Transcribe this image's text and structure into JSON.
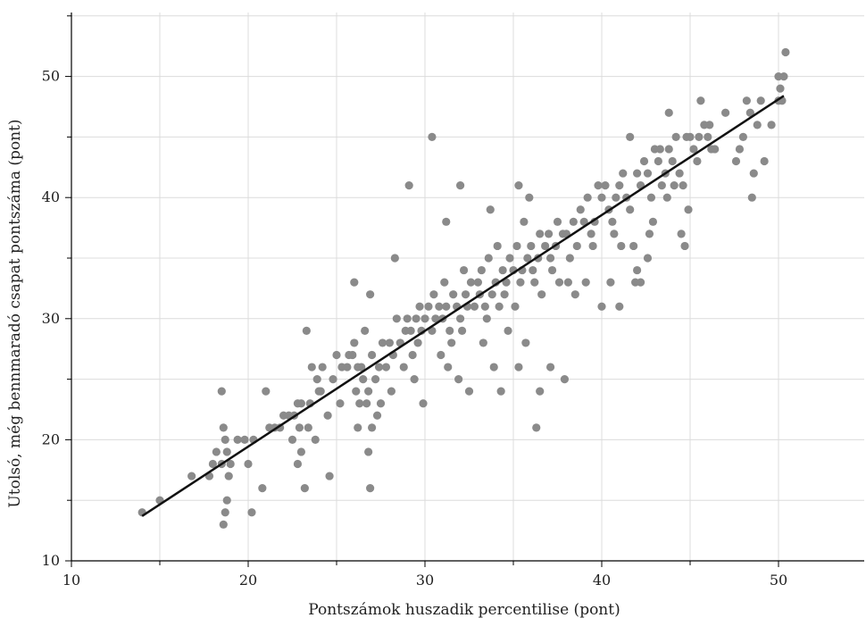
{
  "chart_data": {
    "type": "scatter",
    "title": "",
    "xlabel": "Pontszámok huszadik percentilise (pont)",
    "ylabel": "Utolsó, még bennmaradó csapat pontszáma (pont)",
    "xlim": [
      10,
      55
    ],
    "ylim": [
      10,
      55
    ],
    "x_ticks": [
      10,
      20,
      30,
      40,
      50
    ],
    "y_ticks": [
      10,
      20,
      30,
      40,
      50
    ],
    "x_tick_labels": [
      "10",
      "20",
      "30",
      "40",
      "50"
    ],
    "y_tick_labels": [
      "10",
      "20",
      "30",
      "40",
      "50"
    ],
    "grid": true,
    "colors": {
      "points": "#8a8a8a",
      "trendline": "#111111",
      "grid": "#dcdcdc"
    },
    "trendline": {
      "x": [
        14,
        50.3
      ],
      "y": [
        13.7,
        48.4
      ]
    },
    "points": [
      [
        14,
        14
      ],
      [
        15,
        15
      ],
      [
        16.8,
        17
      ],
      [
        17.8,
        17
      ],
      [
        18,
        18
      ],
      [
        18.2,
        19
      ],
      [
        18.5,
        18
      ],
      [
        18.5,
        24
      ],
      [
        18.6,
        21
      ],
      [
        18.7,
        20
      ],
      [
        18.8,
        19
      ],
      [
        18.9,
        17
      ],
      [
        18.7,
        14
      ],
      [
        18.8,
        15
      ],
      [
        18.6,
        13
      ],
      [
        19,
        18
      ],
      [
        19.4,
        20
      ],
      [
        19.8,
        20
      ],
      [
        20.3,
        20
      ],
      [
        20,
        18
      ],
      [
        20.8,
        16
      ],
      [
        20.2,
        14
      ],
      [
        21,
        24
      ],
      [
        21.2,
        21
      ],
      [
        21.5,
        21
      ],
      [
        21.8,
        21
      ],
      [
        22,
        22
      ],
      [
        22.3,
        22
      ],
      [
        22.6,
        22
      ],
      [
        22.8,
        23
      ],
      [
        23,
        23
      ],
      [
        22.5,
        20
      ],
      [
        22.8,
        18
      ],
      [
        23,
        19
      ],
      [
        23.2,
        16
      ],
      [
        23.4,
        21
      ],
      [
        23.5,
        23
      ],
      [
        24,
        24
      ],
      [
        23.8,
        20
      ],
      [
        23.3,
        29
      ],
      [
        23.6,
        26
      ],
      [
        24.2,
        26
      ],
      [
        24.5,
        22
      ],
      [
        24.8,
        25
      ],
      [
        25,
        27
      ],
      [
        25.3,
        26
      ],
      [
        25.6,
        26
      ],
      [
        25.9,
        27
      ],
      [
        26,
        28
      ],
      [
        26.2,
        26
      ],
      [
        26.5,
        25
      ],
      [
        26.8,
        24
      ],
      [
        27,
        27
      ],
      [
        26.6,
        29
      ],
      [
        26.9,
        32
      ],
      [
        26,
        33
      ],
      [
        27.2,
        25
      ],
      [
        27.4,
        26
      ],
      [
        27,
        21
      ],
      [
        26.8,
        19
      ],
      [
        26.9,
        16
      ],
      [
        27.6,
        28
      ],
      [
        28,
        28
      ],
      [
        28.2,
        27
      ],
      [
        28.3,
        35
      ],
      [
        28.6,
        28
      ],
      [
        28.9,
        29
      ],
      [
        29,
        30
      ],
      [
        29.2,
        29
      ],
      [
        29.1,
        41
      ],
      [
        29.4,
        25
      ],
      [
        29.6,
        28
      ],
      [
        29.8,
        29
      ],
      [
        24.6,
        17
      ],
      [
        22.9,
        21
      ],
      [
        23.9,
        25
      ],
      [
        24.1,
        24
      ],
      [
        25.2,
        23
      ],
      [
        25.7,
        27
      ],
      [
        26.1,
        24
      ],
      [
        26.3,
        23
      ],
      [
        26.4,
        26
      ],
      [
        26.7,
        23
      ],
      [
        27.3,
        22
      ],
      [
        27.8,
        26
      ],
      [
        28.4,
        30
      ],
      [
        28.8,
        26
      ],
      [
        29.3,
        27
      ],
      [
        29.5,
        30
      ],
      [
        29.7,
        31
      ],
      [
        29.9,
        23
      ],
      [
        28.1,
        24
      ],
      [
        27.5,
        23
      ],
      [
        26.2,
        21
      ],
      [
        30,
        30
      ],
      [
        30.2,
        31
      ],
      [
        30.4,
        29
      ],
      [
        30.5,
        32
      ],
      [
        30.6,
        30
      ],
      [
        30.8,
        31
      ],
      [
        31,
        30
      ],
      [
        31.1,
        33
      ],
      [
        31.2,
        31
      ],
      [
        31.4,
        29
      ],
      [
        31.5,
        28
      ],
      [
        31.6,
        32
      ],
      [
        31.8,
        31
      ],
      [
        32,
        30
      ],
      [
        32.1,
        29
      ],
      [
        32.2,
        34
      ],
      [
        32.3,
        32
      ],
      [
        32.4,
        31
      ],
      [
        32.6,
        33
      ],
      [
        32.8,
        31
      ],
      [
        33,
        33
      ],
      [
        33.1,
        32
      ],
      [
        33.2,
        34
      ],
      [
        33.4,
        31
      ],
      [
        33.5,
        30
      ],
      [
        33.6,
        35
      ],
      [
        33.8,
        32
      ],
      [
        34,
        33
      ],
      [
        34.1,
        36
      ],
      [
        34.2,
        31
      ],
      [
        34.4,
        34
      ],
      [
        34.5,
        32
      ],
      [
        34.6,
        33
      ],
      [
        34.8,
        35
      ],
      [
        35,
        34
      ],
      [
        35.1,
        31
      ],
      [
        35.2,
        36
      ],
      [
        35.4,
        33
      ],
      [
        35.5,
        34
      ],
      [
        35.6,
        38
      ],
      [
        35.8,
        35
      ],
      [
        36,
        36
      ],
      [
        36.1,
        34
      ],
      [
        36.2,
        33
      ],
      [
        36.4,
        35
      ],
      [
        36.5,
        37
      ],
      [
        36.6,
        32
      ],
      [
        36.8,
        36
      ],
      [
        37,
        37
      ],
      [
        37.1,
        35
      ],
      [
        37.2,
        34
      ],
      [
        37.4,
        36
      ],
      [
        37.5,
        38
      ],
      [
        37.6,
        33
      ],
      [
        37.8,
        37
      ],
      [
        38,
        37
      ],
      [
        38.2,
        35
      ],
      [
        38.4,
        38
      ],
      [
        38.6,
        36
      ],
      [
        38.8,
        39
      ],
      [
        39,
        38
      ],
      [
        39.2,
        40
      ],
      [
        39.4,
        37
      ],
      [
        39.6,
        38
      ],
      [
        39.8,
        41
      ],
      [
        40,
        40
      ],
      [
        30.4,
        45
      ],
      [
        31.2,
        38
      ],
      [
        32,
        41
      ],
      [
        33.7,
        39
      ],
      [
        35.3,
        41
      ],
      [
        35.9,
        40
      ],
      [
        30.9,
        27
      ],
      [
        31.3,
        26
      ],
      [
        31.9,
        25
      ],
      [
        32.5,
        24
      ],
      [
        33.3,
        28
      ],
      [
        33.9,
        26
      ],
      [
        34.3,
        24
      ],
      [
        34.7,
        29
      ],
      [
        35.3,
        26
      ],
      [
        35.7,
        28
      ],
      [
        36.3,
        21
      ],
      [
        36.5,
        24
      ],
      [
        37.1,
        26
      ],
      [
        37.9,
        25
      ],
      [
        38.1,
        33
      ],
      [
        38.5,
        32
      ],
      [
        39.1,
        33
      ],
      [
        39.5,
        36
      ],
      [
        40,
        31
      ],
      [
        40.5,
        33
      ],
      [
        41,
        31
      ],
      [
        40.2,
        41
      ],
      [
        40.4,
        39
      ],
      [
        40.6,
        38
      ],
      [
        40.8,
        40
      ],
      [
        41,
        41
      ],
      [
        41.2,
        42
      ],
      [
        41.4,
        40
      ],
      [
        41.6,
        39
      ],
      [
        41.8,
        36
      ],
      [
        42,
        42
      ],
      [
        42.2,
        41
      ],
      [
        42.4,
        43
      ],
      [
        42.6,
        42
      ],
      [
        42.8,
        40
      ],
      [
        43,
        44
      ],
      [
        43.2,
        43
      ],
      [
        43.4,
        41
      ],
      [
        43.6,
        42
      ],
      [
        43.8,
        44
      ],
      [
        44,
        43
      ],
      [
        44.2,
        45
      ],
      [
        44.4,
        42
      ],
      [
        44.6,
        41
      ],
      [
        44.8,
        45
      ],
      [
        45,
        45
      ],
      [
        45.2,
        44
      ],
      [
        45.4,
        43
      ],
      [
        45.6,
        48
      ],
      [
        45.8,
        46
      ],
      [
        46,
        45
      ],
      [
        46.2,
        44
      ],
      [
        46.4,
        44
      ],
      [
        47,
        47
      ],
      [
        47.6,
        43
      ],
      [
        47.8,
        44
      ],
      [
        48,
        45
      ],
      [
        48.2,
        48
      ],
      [
        48.4,
        47
      ],
      [
        48.5,
        40
      ],
      [
        48.6,
        42
      ],
      [
        48.8,
        46
      ],
      [
        49,
        48
      ],
      [
        49.2,
        43
      ],
      [
        49.6,
        46
      ],
      [
        50,
        48
      ],
      [
        50,
        50
      ],
      [
        50.1,
        49
      ],
      [
        50.3,
        50
      ],
      [
        50.2,
        48
      ],
      [
        50.4,
        52
      ],
      [
        41.6,
        45
      ],
      [
        42,
        34
      ],
      [
        42.2,
        33
      ],
      [
        42.6,
        35
      ],
      [
        43.3,
        44
      ],
      [
        43.8,
        47
      ],
      [
        44.5,
        37
      ],
      [
        44.7,
        36
      ],
      [
        44.9,
        39
      ],
      [
        45.5,
        45
      ],
      [
        46.1,
        46
      ],
      [
        42.9,
        38
      ],
      [
        43.7,
        40
      ],
      [
        44.1,
        41
      ],
      [
        41.1,
        36
      ],
      [
        40.7,
        37
      ],
      [
        41.9,
        33
      ],
      [
        42.7,
        37
      ]
    ]
  }
}
